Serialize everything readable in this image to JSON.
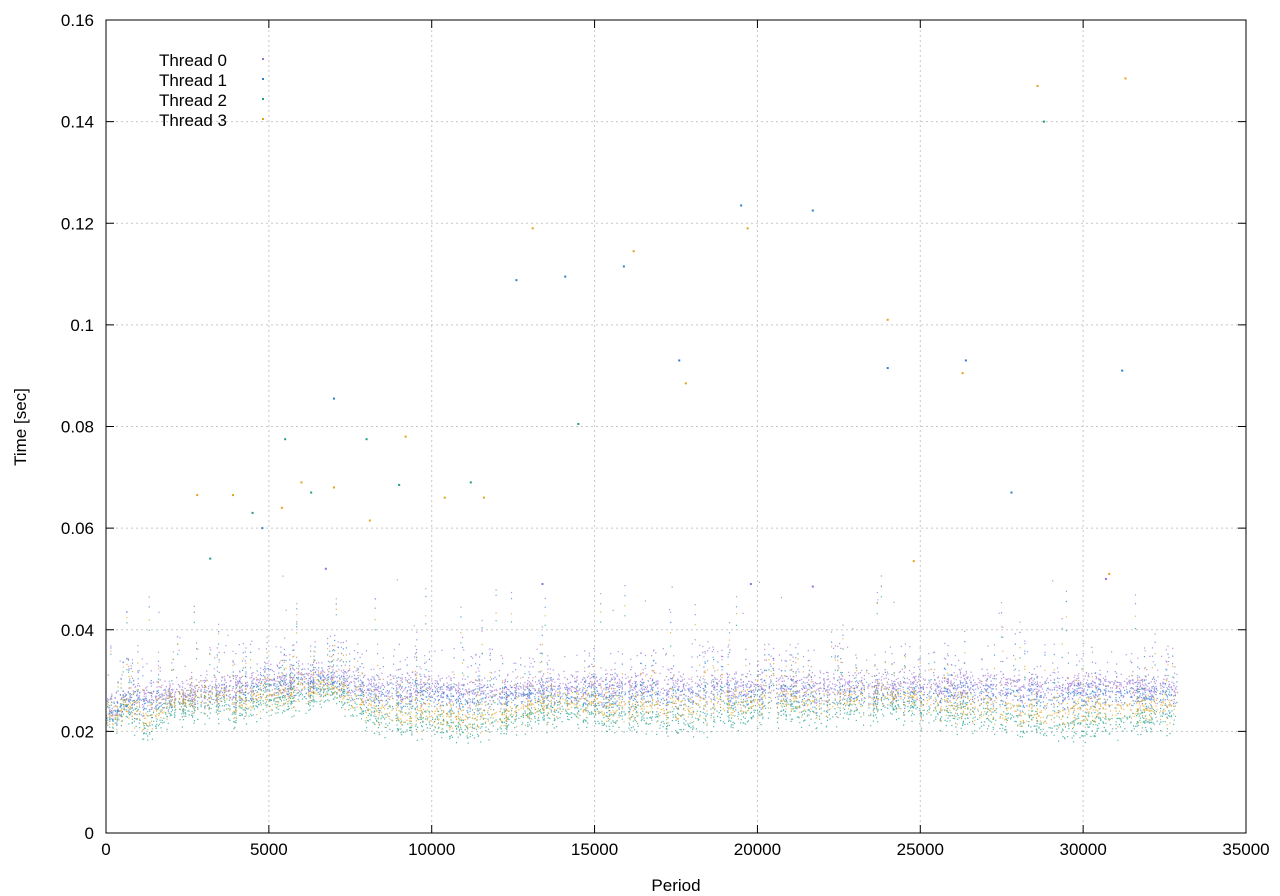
{
  "chart_data": {
    "type": "scatter",
    "title": "",
    "xlabel": "Period",
    "ylabel": "Time [sec]",
    "xlim": [
      0,
      35000
    ],
    "ylim": [
      0,
      0.16
    ],
    "x_ticks": [
      "0",
      "5000",
      "10000",
      "15000",
      "20000",
      "25000",
      "30000",
      "35000"
    ],
    "y_ticks": [
      "0",
      "0.02",
      "0.04",
      "0.06",
      "0.08",
      "0.1",
      "0.12",
      "0.14",
      "0.16"
    ],
    "grid": true,
    "legend_position": "top-left",
    "x_range_of_points": [
      0,
      32900
    ],
    "series": [
      {
        "name": "Thread 0",
        "color": "#9b6fd6",
        "band": [
          [
            0,
            0.0245
          ],
          [
            600,
            0.026
          ],
          [
            1200,
            0.027
          ],
          [
            2000,
            0.0275
          ],
          [
            3000,
            0.028
          ],
          [
            4000,
            0.029
          ],
          [
            5000,
            0.03
          ],
          [
            6000,
            0.03
          ],
          [
            7000,
            0.031
          ],
          [
            8000,
            0.029
          ],
          [
            9000,
            0.0285
          ],
          [
            10000,
            0.0285
          ],
          [
            11000,
            0.028
          ],
          [
            12000,
            0.028
          ],
          [
            14000,
            0.029
          ],
          [
            16000,
            0.029
          ],
          [
            18000,
            0.029
          ],
          [
            20000,
            0.029
          ],
          [
            22000,
            0.029
          ],
          [
            24000,
            0.029
          ],
          [
            26000,
            0.029
          ],
          [
            28000,
            0.029
          ],
          [
            30000,
            0.029
          ],
          [
            32900,
            0.0285
          ]
        ],
        "outliers": [
          [
            6750,
            0.052
          ],
          [
            13400,
            0.049
          ],
          [
            19800,
            0.049
          ],
          [
            21700,
            0.0485
          ],
          [
            30700,
            0.05
          ]
        ]
      },
      {
        "name": "Thread 1",
        "color": "#2b7fd0",
        "band": [
          [
            0,
            0.024
          ],
          [
            600,
            0.026
          ],
          [
            1200,
            0.025
          ],
          [
            2000,
            0.026
          ],
          [
            3000,
            0.027
          ],
          [
            4000,
            0.027
          ],
          [
            5000,
            0.029
          ],
          [
            6000,
            0.029
          ],
          [
            7000,
            0.03
          ],
          [
            8000,
            0.027
          ],
          [
            9000,
            0.027
          ],
          [
            10000,
            0.027
          ],
          [
            11000,
            0.026
          ],
          [
            12000,
            0.027
          ],
          [
            14000,
            0.027
          ],
          [
            16000,
            0.027
          ],
          [
            18000,
            0.027
          ],
          [
            20000,
            0.027
          ],
          [
            22000,
            0.027
          ],
          [
            24000,
            0.027
          ],
          [
            26000,
            0.027
          ],
          [
            28000,
            0.027
          ],
          [
            30000,
            0.027
          ],
          [
            32900,
            0.027
          ]
        ],
        "outliers": [
          [
            4800,
            0.06
          ],
          [
            7000,
            0.0855
          ],
          [
            12600,
            0.1088
          ],
          [
            14100,
            0.1095
          ],
          [
            15900,
            0.1115
          ],
          [
            17600,
            0.093
          ],
          [
            19500,
            0.1235
          ],
          [
            21700,
            0.1225
          ],
          [
            24000,
            0.0915
          ],
          [
            26400,
            0.093
          ],
          [
            27800,
            0.067
          ],
          [
            31200,
            0.091
          ]
        ]
      },
      {
        "name": "Thread 2",
        "color": "#1a9f8c",
        "band": [
          [
            0,
            0.023
          ],
          [
            600,
            0.024
          ],
          [
            1200,
            0.02
          ],
          [
            2000,
            0.024
          ],
          [
            3000,
            0.025
          ],
          [
            4000,
            0.024
          ],
          [
            5000,
            0.026
          ],
          [
            6000,
            0.026
          ],
          [
            7000,
            0.028
          ],
          [
            8000,
            0.023
          ],
          [
            9000,
            0.022
          ],
          [
            10000,
            0.0215
          ],
          [
            11000,
            0.021
          ],
          [
            12000,
            0.022
          ],
          [
            14000,
            0.024
          ],
          [
            16000,
            0.023
          ],
          [
            18000,
            0.022
          ],
          [
            20000,
            0.024
          ],
          [
            22000,
            0.024
          ],
          [
            24000,
            0.025
          ],
          [
            26000,
            0.023
          ],
          [
            28000,
            0.022
          ],
          [
            30000,
            0.021
          ],
          [
            32900,
            0.023
          ]
        ],
        "outliers": [
          [
            3200,
            0.054
          ],
          [
            4500,
            0.063
          ],
          [
            5500,
            0.0775
          ],
          [
            6300,
            0.067
          ],
          [
            8000,
            0.0775
          ],
          [
            9000,
            0.0685
          ],
          [
            11200,
            0.069
          ],
          [
            14500,
            0.0805
          ],
          [
            28800,
            0.14
          ]
        ]
      },
      {
        "name": "Thread 3",
        "color": "#e0a21c",
        "band": [
          [
            0,
            0.0235
          ],
          [
            600,
            0.025
          ],
          [
            1200,
            0.022
          ],
          [
            2000,
            0.026
          ],
          [
            3000,
            0.027
          ],
          [
            4000,
            0.026
          ],
          [
            5000,
            0.027
          ],
          [
            6000,
            0.028
          ],
          [
            7000,
            0.029
          ],
          [
            8000,
            0.025
          ],
          [
            9000,
            0.024
          ],
          [
            10000,
            0.023
          ],
          [
            11000,
            0.023
          ],
          [
            12000,
            0.0235
          ],
          [
            14000,
            0.026
          ],
          [
            16000,
            0.025
          ],
          [
            18000,
            0.025
          ],
          [
            20000,
            0.026
          ],
          [
            22000,
            0.026
          ],
          [
            24000,
            0.027
          ],
          [
            26000,
            0.025
          ],
          [
            28000,
            0.024
          ],
          [
            30000,
            0.024
          ],
          [
            32900,
            0.025
          ]
        ],
        "outliers": [
          [
            2800,
            0.0665
          ],
          [
            3900,
            0.0665
          ],
          [
            5400,
            0.064
          ],
          [
            6000,
            0.069
          ],
          [
            7000,
            0.068
          ],
          [
            8100,
            0.0615
          ],
          [
            9200,
            0.078
          ],
          [
            10400,
            0.066
          ],
          [
            11600,
            0.066
          ],
          [
            13100,
            0.119
          ],
          [
            16200,
            0.1145
          ],
          [
            17800,
            0.0885
          ],
          [
            19700,
            0.119
          ],
          [
            24000,
            0.101
          ],
          [
            26300,
            0.0905
          ],
          [
            28600,
            0.147
          ],
          [
            31300,
            0.1485
          ],
          [
            24800,
            0.0535
          ],
          [
            30800,
            0.051
          ]
        ]
      }
    ]
  }
}
